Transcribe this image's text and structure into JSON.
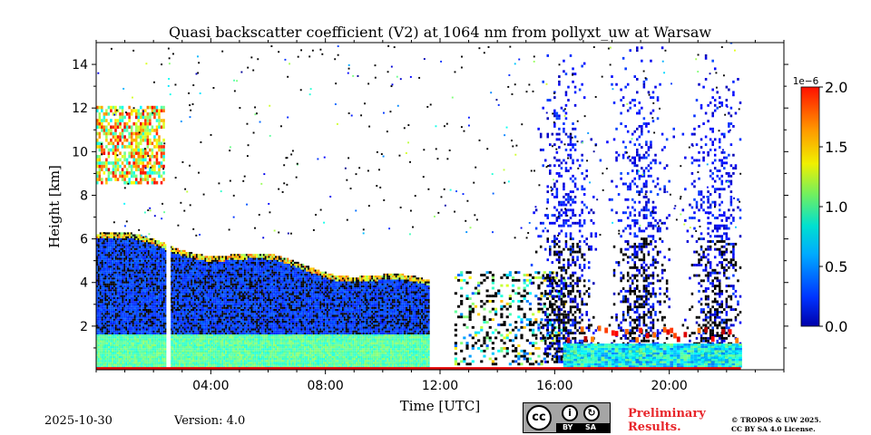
{
  "chart_data": {
    "type": "heatmap",
    "title": "Quasi backscatter coefficient (V2) at 1064 nm from pollyxt_uw at Warsaw",
    "xlabel": "Time [UTC]",
    "ylabel": "Height [km]",
    "x_ticks": [
      "04:00",
      "08:00",
      "12:00",
      "16:00",
      "20:00"
    ],
    "x_tick_hours": [
      4,
      8,
      12,
      16,
      20
    ],
    "xlim_hours": [
      0,
      24
    ],
    "y_ticks": [
      "2",
      "4",
      "6",
      "8",
      "10",
      "12",
      "14"
    ],
    "y_tick_values": [
      2,
      4,
      6,
      8,
      10,
      12,
      14
    ],
    "ylim_km": [
      0,
      15
    ],
    "colorbar": {
      "scale_label": "1e−6",
      "ticks": [
        "0.0",
        "0.5",
        "1.0",
        "1.5",
        "2.0"
      ],
      "tick_values": [
        0,
        0.5,
        1.0,
        1.5,
        2.0
      ],
      "range": [
        0,
        2.0
      ],
      "colormap": "jet"
    },
    "features": [
      {
        "name": "aerosol-boundary-layer",
        "t_start": 0,
        "t_end": 11.6,
        "top_km": 6.2,
        "value": 0.3
      },
      {
        "name": "near-ground-layer",
        "t_start": 0,
        "t_end": 11.6,
        "top_km": 1.6,
        "value": 0.8
      },
      {
        "name": "cirrus-clouds-early",
        "t_start": 0,
        "t_end": 2.4,
        "bottom_km": 8.5,
        "top_km": 12.0,
        "value": 1.8
      },
      {
        "name": "low-clouds-afternoon",
        "t_start": 16.3,
        "t_end": 22.5,
        "base_km": 1.2,
        "value": 1.5
      },
      {
        "name": "noise-columns",
        "t_start": 15.0,
        "t_end": 22.5,
        "top_km": 15,
        "value": 0.1
      }
    ]
  },
  "footer": {
    "date": "2025-10-30",
    "version": "Version: 4.0",
    "license_badge": {
      "cc": "cc",
      "by": "BY",
      "sa": "SA"
    },
    "preliminary_line1": "Preliminary",
    "preliminary_line2": "Results.",
    "copyright_line1": "© TROPOS & UW 2025.",
    "copyright_line2": "CC BY SA 4.0 License."
  },
  "colors": {
    "prelim": "#e8262b",
    "badge_bg": "#a5a5a5"
  }
}
